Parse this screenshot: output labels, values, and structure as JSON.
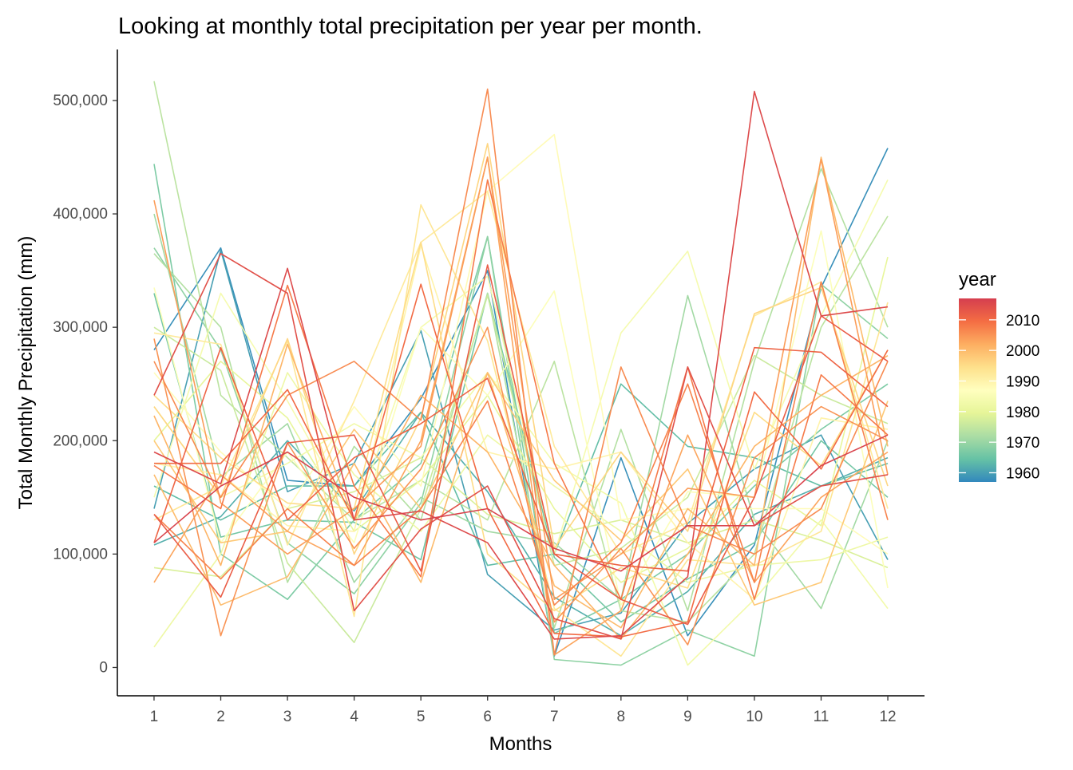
{
  "chart_data": {
    "type": "line",
    "title": "Looking at monthly total precipitation per year per month.",
    "xlabel": "Months",
    "ylabel": "Total Monthly Precipitation (mm)",
    "x": [
      1,
      2,
      3,
      4,
      5,
      6,
      7,
      8,
      9,
      10,
      11,
      12
    ],
    "x_tick_labels": [
      "1",
      "2",
      "3",
      "4",
      "5",
      "6",
      "7",
      "8",
      "9",
      "10",
      "11",
      "12"
    ],
    "y_ticks": [
      0,
      100000,
      200000,
      300000,
      400000,
      500000
    ],
    "y_tick_labels": [
      "0",
      "100,000",
      "200,000",
      "300,000",
      "400,000",
      "500,000"
    ],
    "xlim": [
      0.45,
      12.55
    ],
    "ylim": [
      -25000,
      545000
    ],
    "grid": false,
    "legend": {
      "title": "year",
      "position": "right",
      "type": "colorbar",
      "range": [
        1957,
        2017
      ],
      "ticks": [
        1960,
        1970,
        1980,
        1990,
        2000,
        2010
      ],
      "tick_labels": [
        "1960",
        "1970",
        "1980",
        "1990",
        "2000",
        "2010"
      ],
      "colors": [
        "#3288bd",
        "#66c2a5",
        "#abdda4",
        "#e6f598",
        "#ffffbf",
        "#fee08b",
        "#fdae61",
        "#f46d43",
        "#d53e4f"
      ]
    },
    "series": [
      {
        "year": 1958,
        "values": [
          280000,
          370000,
          165000,
          160000,
          237000,
          350000,
          10000,
          185000,
          28000,
          108000,
          335000,
          458000
        ]
      },
      {
        "year": 1960,
        "values": [
          140000,
          368000,
          155000,
          180000,
          297000,
          82000,
          33000,
          48000,
          127000,
          175000,
          205000,
          95000
        ]
      },
      {
        "year": 1962,
        "values": [
          108000,
          133000,
          200000,
          138000,
          225000,
          155000,
          62000,
          28000,
          67000,
          135000,
          160000,
          185000
        ]
      },
      {
        "year": 1964,
        "values": [
          160000,
          130000,
          160000,
          160000,
          225000,
          90000,
          100000,
          250000,
          195000,
          185000,
          160000,
          180000
        ]
      },
      {
        "year": 1966,
        "values": [
          330000,
          115000,
          130000,
          128000,
          95000,
          330000,
          97000,
          40000,
          78000,
          110000,
          200000,
          150000
        ]
      },
      {
        "year": 1967,
        "values": [
          444000,
          100000,
          60000,
          130000,
          180000,
          380000,
          30000,
          60000,
          100000,
          160000,
          210000,
          250000
        ]
      },
      {
        "year": 1969,
        "values": [
          370000,
          280000,
          110000,
          65000,
          145000,
          380000,
          7000,
          2000,
          33000,
          10000,
          338000,
          290000
        ]
      },
      {
        "year": 1971,
        "values": [
          400000,
          168000,
          215000,
          75000,
          150000,
          120000,
          110000,
          60000,
          328000,
          130000,
          52000,
          200000
        ]
      },
      {
        "year": 1973,
        "values": [
          365000,
          300000,
          75000,
          195000,
          130000,
          330000,
          35000,
          210000,
          50000,
          270000,
          440000,
          300000
        ]
      },
      {
        "year": 1974,
        "values": [
          517000,
          240000,
          185000,
          130000,
          165000,
          130000,
          270000,
          50000,
          40000,
          100000,
          300000,
          398000
        ]
      },
      {
        "year": 1976,
        "values": [
          300000,
          262000,
          92000,
          22000,
          140000,
          328000,
          90000,
          105000,
          150000,
          275000,
          240000,
          215000
        ]
      },
      {
        "year": 1978,
        "values": [
          88000,
          80000,
          140000,
          155000,
          185000,
          135000,
          118000,
          130000,
          110000,
          130000,
          112000,
          88000
        ]
      },
      {
        "year": 1980,
        "values": [
          200000,
          270000,
          220000,
          120000,
          165000,
          240000,
          140000,
          75000,
          105000,
          165000,
          125000,
          362000
        ]
      },
      {
        "year": 1982,
        "values": [
          18000,
          100000,
          260000,
          170000,
          120000,
          205000,
          160000,
          120000,
          75000,
          90000,
          95000,
          115000
        ]
      },
      {
        "year": 1983,
        "values": [
          230000,
          150000,
          180000,
          215000,
          185000,
          260000,
          180000,
          145000,
          2000,
          60000,
          130000,
          52000
        ]
      },
      {
        "year": 1984,
        "values": [
          150000,
          330000,
          235000,
          130000,
          300000,
          345000,
          100000,
          295000,
          367000,
          175000,
          310000,
          430000
        ]
      },
      {
        "year": 1986,
        "values": [
          335000,
          110000,
          190000,
          110000,
          300000,
          240000,
          332000,
          55000,
          155000,
          150000,
          385000,
          70000
        ]
      },
      {
        "year": 1988,
        "values": [
          260000,
          190000,
          140000,
          230000,
          160000,
          420000,
          470000,
          130000,
          140000,
          140000,
          140000,
          100000
        ]
      },
      {
        "year": 1990,
        "values": [
          180000,
          170000,
          125000,
          120000,
          372000,
          190000,
          175000,
          190000,
          110000,
          60000,
          220000,
          210000
        ]
      },
      {
        "year": 1992,
        "values": [
          295000,
          285000,
          108000,
          235000,
          375000,
          420000,
          195000,
          100000,
          128000,
          310000,
          340000,
          140000
        ]
      },
      {
        "year": 1993,
        "values": [
          130000,
          160000,
          288000,
          45000,
          408000,
          288000,
          52000,
          10000,
          95000,
          90000,
          120000,
          322000
        ]
      },
      {
        "year": 1995,
        "values": [
          240000,
          185000,
          145000,
          140000,
          375000,
          100000,
          50000,
          88000,
          70000,
          225000,
          178000,
          280000
        ]
      },
      {
        "year": 1996,
        "values": [
          230000,
          150000,
          290000,
          100000,
          220000,
          462000,
          105000,
          190000,
          120000,
          312000,
          335000,
          160000
        ]
      },
      {
        "year": 1998,
        "values": [
          200000,
          110000,
          120000,
          210000,
          140000,
          260000,
          165000,
          112000,
          175000,
          55000,
          75000,
          235000
        ]
      },
      {
        "year": 2000,
        "values": [
          170000,
          55000,
          80000,
          180000,
          75000,
          260000,
          72000,
          35000,
          140000,
          90000,
          450000,
          195000
        ]
      },
      {
        "year": 2001,
        "values": [
          222000,
          90000,
          285000,
          130000,
          240000,
          190000,
          90000,
          25000,
          100000,
          195000,
          240000,
          275000
        ]
      },
      {
        "year": 2003,
        "values": [
          75000,
          170000,
          120000,
          90000,
          200000,
          450000,
          11000,
          50000,
          205000,
          75000,
          150000,
          190000
        ]
      },
      {
        "year": 2004,
        "values": [
          412000,
          145000,
          100000,
          140000,
          195000,
          450000,
          60000,
          100000,
          158000,
          150000,
          448000,
          170000
        ]
      },
      {
        "year": 2005,
        "values": [
          290000,
          28000,
          198000,
          105000,
          175000,
          300000,
          40000,
          105000,
          20000,
          185000,
          230000,
          200000
        ]
      },
      {
        "year": 2006,
        "values": [
          270000,
          150000,
          240000,
          270000,
          218000,
          510000,
          11000,
          265000,
          125000,
          100000,
          140000,
          270000
        ]
      },
      {
        "year": 2007,
        "values": [
          135000,
          78000,
          140000,
          90000,
          140000,
          235000,
          55000,
          110000,
          250000,
          75000,
          340000,
          130000
        ]
      },
      {
        "year": 2008,
        "values": [
          178000,
          140000,
          337000,
          160000,
          80000,
          430000,
          180000,
          60000,
          265000,
          60000,
          258000,
          205000
        ]
      },
      {
        "year": 2010,
        "values": [
          180000,
          180000,
          245000,
          130000,
          338000,
          140000,
          30000,
          27000,
          40000,
          243000,
          175000,
          280000
        ]
      },
      {
        "year": 2011,
        "values": [
          110000,
          282000,
          130000,
          185000,
          215000,
          255000,
          100000,
          90000,
          85000,
          282000,
          278000,
          230000
        ]
      },
      {
        "year": 2012,
        "values": [
          135000,
          62000,
          198000,
          205000,
          85000,
          355000,
          100000,
          60000,
          38000,
          150000,
          310000,
          270000
        ]
      },
      {
        "year": 2014,
        "values": [
          240000,
          365000,
          330000,
          50000,
          122000,
          160000,
          43000,
          25000,
          265000,
          125000,
          160000,
          170000
        ]
      },
      {
        "year": 2015,
        "values": [
          190000,
          162000,
          352000,
          130000,
          138000,
          110000,
          25000,
          28000,
          80000,
          508000,
          310000,
          318000
        ]
      },
      {
        "year": 2016,
        "values": [
          110000,
          160000,
          190000,
          150000,
          130000,
          140000,
          105000,
          85000,
          125000,
          125000,
          178000,
          205000
        ]
      }
    ]
  }
}
